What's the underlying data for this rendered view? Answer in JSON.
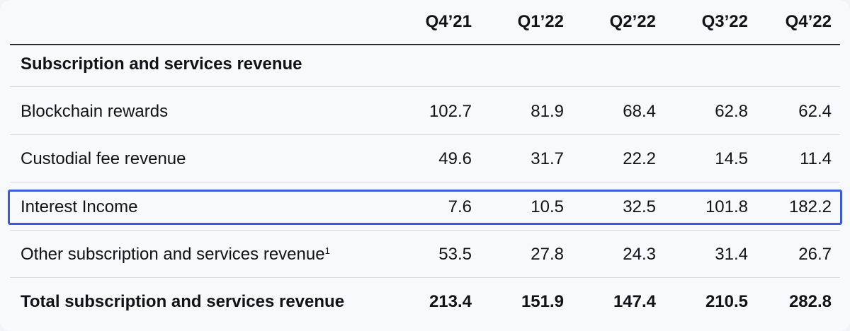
{
  "columns": [
    "Q4’21",
    "Q1’22",
    "Q2’22",
    "Q3’22",
    "Q4’22"
  ],
  "section_title": "Subscription and services revenue",
  "rows": [
    {
      "label": "Blockchain rewards",
      "values": [
        "102.7",
        "81.9",
        "68.4",
        "62.8",
        "62.4"
      ]
    },
    {
      "label": "Custodial fee revenue",
      "values": [
        "49.6",
        "31.7",
        "22.2",
        "14.5",
        "11.4"
      ]
    },
    {
      "label": "Interest Income",
      "values": [
        "7.6",
        "10.5",
        "32.5",
        "101.8",
        "182.2"
      ],
      "highlighted": true
    },
    {
      "label": "Other subscription and services revenue",
      "footnote": "1",
      "values": [
        "53.5",
        "27.8",
        "24.3",
        "31.4",
        "26.7"
      ]
    }
  ],
  "total": {
    "label": "Total subscription and services revenue",
    "values": [
      "213.4",
      "151.9",
      "147.4",
      "210.5",
      "282.8"
    ]
  },
  "colors": {
    "highlight_border": "#3b5bdb",
    "background": "#f8f9fb",
    "text": "#111318"
  }
}
